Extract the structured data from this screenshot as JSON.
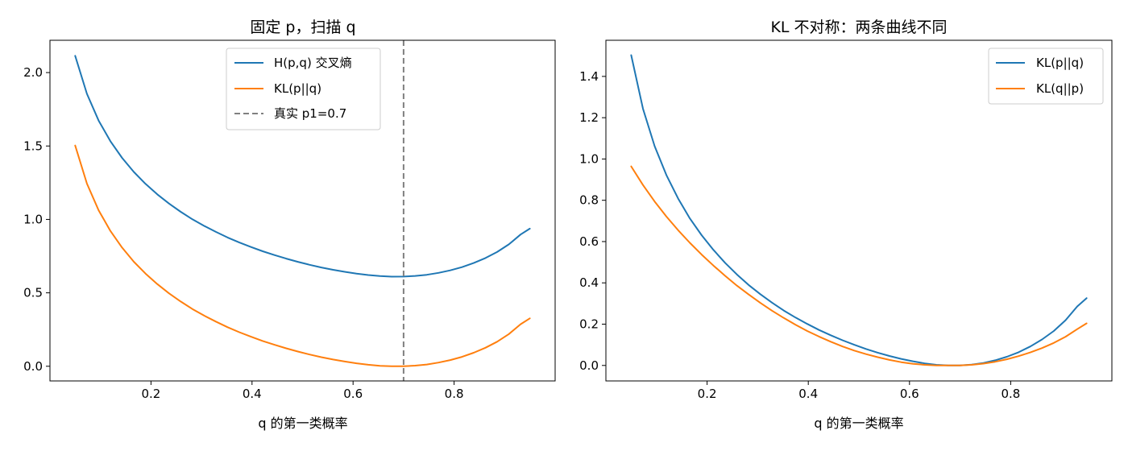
{
  "chart_data": [
    {
      "type": "line",
      "title": "固定 p，扫描 q",
      "xlabel": "q 的第一类概率",
      "ylabel": "",
      "xlim": [
        0.0,
        1.0
      ],
      "ylim": [
        -0.1,
        2.22
      ],
      "xticks": [
        0.2,
        0.4,
        0.6,
        0.8
      ],
      "xtick_labels": [
        "0.2",
        "0.4",
        "0.6",
        "0.8"
      ],
      "yticks": [
        0.0,
        0.5,
        1.0,
        1.5,
        2.0
      ],
      "ytick_labels": [
        "0.0",
        "0.5",
        "1.0",
        "1.5",
        "2.0"
      ],
      "legend_position": "top-center",
      "grid": false,
      "x": [
        0.05,
        0.0732,
        0.0964,
        0.1196,
        0.1428,
        0.166,
        0.1892,
        0.2124,
        0.2356,
        0.2588,
        0.282,
        0.3052,
        0.3284,
        0.3516,
        0.3748,
        0.398,
        0.4212,
        0.4444,
        0.4676,
        0.4908,
        0.514,
        0.5372,
        0.5604,
        0.5836,
        0.6068,
        0.63,
        0.6532,
        0.6764,
        0.6996,
        0.7228,
        0.746,
        0.7692,
        0.7924,
        0.8156,
        0.8388,
        0.862,
        0.8852,
        0.9084,
        0.9316,
        0.95
      ],
      "series": [
        {
          "name": "H(p,q) 交叉熵",
          "color": "#1f77b4",
          "style": "solid",
          "values": [
            2.114,
            1.855,
            1.673,
            1.533,
            1.419,
            1.323,
            1.242,
            1.171,
            1.108,
            1.052,
            1.001,
            0.956,
            0.915,
            0.877,
            0.843,
            0.812,
            0.783,
            0.757,
            0.733,
            0.711,
            0.691,
            0.673,
            0.657,
            0.643,
            0.631,
            0.621,
            0.614,
            0.61,
            0.611,
            0.615,
            0.623,
            0.636,
            0.653,
            0.675,
            0.703,
            0.737,
            0.778,
            0.83,
            0.897,
            0.937
          ]
        },
        {
          "name": "KL(p||q)",
          "color": "#ff7f0e",
          "style": "solid",
          "values": [
            1.503,
            1.244,
            1.062,
            0.922,
            0.808,
            0.712,
            0.631,
            0.56,
            0.497,
            0.441,
            0.39,
            0.345,
            0.304,
            0.266,
            0.232,
            0.201,
            0.172,
            0.146,
            0.122,
            0.1,
            0.08,
            0.062,
            0.046,
            0.032,
            0.02,
            0.01,
            0.003,
            0.0,
            0.0,
            0.004,
            0.012,
            0.025,
            0.042,
            0.064,
            0.092,
            0.126,
            0.167,
            0.219,
            0.286,
            0.326
          ]
        }
      ],
      "vline": {
        "x": 0.7,
        "name": "真实 p1=0.7",
        "color": "#808080",
        "style": "dashed"
      }
    },
    {
      "type": "line",
      "title": "KL 不对称：两条曲线不同",
      "xlabel": "q 的第一类概率",
      "ylabel": "",
      "xlim": [
        0.0,
        1.0
      ],
      "ylim": [
        -0.075,
        1.575
      ],
      "xticks": [
        0.2,
        0.4,
        0.6,
        0.8
      ],
      "xtick_labels": [
        "0.2",
        "0.4",
        "0.6",
        "0.8"
      ],
      "yticks": [
        0.0,
        0.2,
        0.4,
        0.6,
        0.8,
        1.0,
        1.2,
        1.4
      ],
      "ytick_labels": [
        "0.0",
        "0.2",
        "0.4",
        "0.6",
        "0.8",
        "1.0",
        "1.2",
        "1.4"
      ],
      "legend_position": "top-right",
      "grid": false,
      "x": [
        0.05,
        0.0732,
        0.0964,
        0.1196,
        0.1428,
        0.166,
        0.1892,
        0.2124,
        0.2356,
        0.2588,
        0.282,
        0.3052,
        0.3284,
        0.3516,
        0.3748,
        0.398,
        0.4212,
        0.4444,
        0.4676,
        0.4908,
        0.514,
        0.5372,
        0.5604,
        0.5836,
        0.6068,
        0.63,
        0.6532,
        0.6764,
        0.6996,
        0.7228,
        0.746,
        0.7692,
        0.7924,
        0.8156,
        0.8388,
        0.862,
        0.8852,
        0.9084,
        0.9316,
        0.95
      ],
      "series": [
        {
          "name": "KL(p||q)",
          "color": "#1f77b4",
          "style": "solid",
          "values": [
            1.503,
            1.244,
            1.062,
            0.922,
            0.808,
            0.712,
            0.631,
            0.56,
            0.497,
            0.441,
            0.39,
            0.345,
            0.304,
            0.266,
            0.232,
            0.201,
            0.172,
            0.146,
            0.122,
            0.1,
            0.08,
            0.062,
            0.046,
            0.032,
            0.02,
            0.01,
            0.003,
            0.0,
            0.0,
            0.004,
            0.012,
            0.025,
            0.042,
            0.064,
            0.092,
            0.126,
            0.167,
            0.219,
            0.286,
            0.326
          ]
        },
        {
          "name": "KL(q||p)",
          "color": "#ff7f0e",
          "style": "solid",
          "values": [
            0.964,
            0.874,
            0.794,
            0.721,
            0.655,
            0.594,
            0.537,
            0.484,
            0.434,
            0.387,
            0.344,
            0.303,
            0.265,
            0.23,
            0.197,
            0.167,
            0.14,
            0.115,
            0.092,
            0.072,
            0.055,
            0.04,
            0.027,
            0.016,
            0.008,
            0.003,
            0.0,
            0.0,
            0.0,
            0.003,
            0.009,
            0.018,
            0.03,
            0.045,
            0.063,
            0.084,
            0.109,
            0.139,
            0.176,
            0.204
          ]
        }
      ]
    }
  ]
}
